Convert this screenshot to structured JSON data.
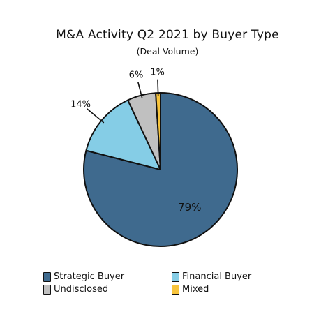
{
  "chart_data": {
    "type": "pie",
    "title": "M&A Activity Q2 2021 by Buyer Type",
    "subtitle": "(Deal Volume)",
    "categories": [
      "Strategic Buyer",
      "Financial Buyer",
      "Undisclosed",
      "Mixed"
    ],
    "values": [
      79,
      14,
      6,
      1
    ],
    "labels": [
      "79%",
      "14%",
      "6%",
      "1%"
    ],
    "colors": [
      "#3f6a8e",
      "#85cde6",
      "#c0c0c0",
      "#f7c43c"
    ],
    "legend_position": "bottom"
  }
}
